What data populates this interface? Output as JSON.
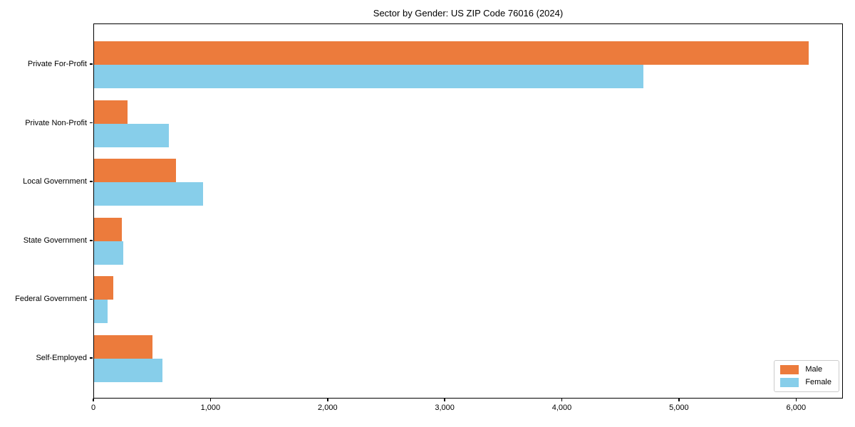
{
  "title": "Sector by Gender: US ZIP Code 76016 (2024)",
  "chart_data": {
    "type": "bar",
    "orientation": "horizontal",
    "title": "Sector by Gender: US ZIP Code 76016 (2024)",
    "categories": [
      "Private For-Profit",
      "Private Non-Profit",
      "Local Government",
      "State Government",
      "Federal Government",
      "Self-Employed"
    ],
    "series": [
      {
        "name": "Male",
        "color": "#ec7b3c",
        "values": [
          6100,
          285,
          700,
          240,
          165,
          500
        ]
      },
      {
        "name": "Female",
        "color": "#87ceea",
        "values": [
          4690,
          640,
          930,
          250,
          115,
          585
        ]
      }
    ],
    "xlabel": "",
    "ylabel": "",
    "xlim": [
      0,
      6400
    ],
    "xticks": [
      {
        "value": 0,
        "label": "0"
      },
      {
        "value": 1000,
        "label": "1,000"
      },
      {
        "value": 2000,
        "label": "2,000"
      },
      {
        "value": 3000,
        "label": "3,000"
      },
      {
        "value": 4000,
        "label": "4,000"
      },
      {
        "value": 5000,
        "label": "5,000"
      },
      {
        "value": 6000,
        "label": "6,000"
      }
    ],
    "grid": false,
    "legend_position": "lower right"
  }
}
